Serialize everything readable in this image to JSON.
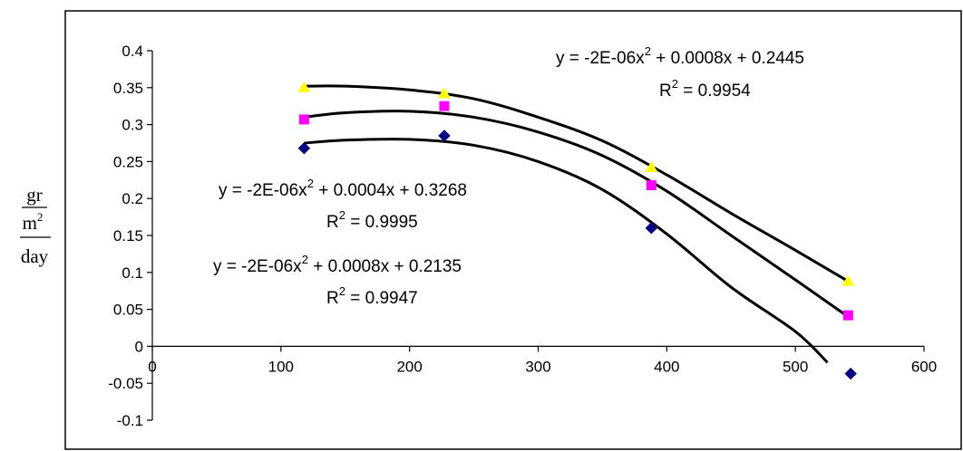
{
  "chart_data": {
    "type": "scatter",
    "title": "",
    "xlabel": "",
    "ylabel": {
      "numerator": "gr",
      "denominator_base": "m",
      "denominator_exp": "2",
      "per": "day"
    },
    "xlim": [
      0,
      600
    ],
    "ylim": [
      -0.1,
      0.4
    ],
    "x_ticks": [
      0,
      100,
      200,
      300,
      400,
      500,
      600
    ],
    "y_ticks": [
      -0.1,
      -0.05,
      0,
      0.05,
      0.1,
      0.15,
      0.2,
      0.25,
      0.3,
      0.35,
      0.4
    ],
    "x_tick_labels": [
      "0",
      "100",
      "200",
      "300",
      "400",
      "500",
      "600"
    ],
    "y_tick_labels": [
      "-0.1",
      "-0.05",
      "0",
      "0.05",
      "0.1",
      "0.15",
      "0.2",
      "0.25",
      "0.3",
      "0.35",
      "0.4"
    ],
    "grid": false,
    "legend": "none",
    "series": [
      {
        "marker": "diamond",
        "color": "#000080",
        "x": [
          118,
          227,
          388,
          543
        ],
        "y": [
          0.268,
          0.285,
          0.16,
          -0.037
        ]
      },
      {
        "marker": "square",
        "color": "#FF00FF",
        "x": [
          118,
          227,
          388,
          541
        ],
        "y": [
          0.307,
          0.325,
          0.218,
          0.042
        ]
      },
      {
        "marker": "triangle",
        "color": "#FFFF00",
        "x": [
          118,
          227,
          388,
          541
        ],
        "y": [
          0.35,
          0.342,
          0.242,
          0.088
        ]
      }
    ],
    "trendlines": [
      {
        "equation_text": "y = -2E-06x",
        "equation_exp": "2",
        "equation_rest": " + 0.0008x + 0.2135",
        "r2_label": "R",
        "r2_exp": "2",
        "r2_value": " = 0.9947",
        "points": [
          [
            118,
            0.275
          ],
          [
            150,
            0.279
          ],
          [
            200,
            0.28
          ],
          [
            250,
            0.272
          ],
          [
            300,
            0.25
          ],
          [
            350,
            0.212
          ],
          [
            400,
            0.152
          ],
          [
            450,
            0.08
          ],
          [
            500,
            0.02
          ],
          [
            525,
            -0.022
          ]
        ]
      },
      {
        "equation_text": "y = -2E-06x",
        "equation_exp": "2",
        "equation_rest": " + 0.0004x + 0.3268",
        "r2_label": "R",
        "r2_exp": "2",
        "r2_value": " = 0.9995",
        "points": [
          [
            118,
            0.31
          ],
          [
            150,
            0.316
          ],
          [
            200,
            0.318
          ],
          [
            250,
            0.31
          ],
          [
            300,
            0.29
          ],
          [
            350,
            0.258
          ],
          [
            400,
            0.21
          ],
          [
            450,
            0.15
          ],
          [
            500,
            0.09
          ],
          [
            541,
            0.04
          ]
        ]
      },
      {
        "equation_text": "y = -2E-06x",
        "equation_exp": "2",
        "equation_rest": " + 0.0008x + 0.2445",
        "r2_label": "R",
        "r2_exp": "2",
        "r2_value": " = 0.9954",
        "points": [
          [
            118,
            0.352
          ],
          [
            150,
            0.352
          ],
          [
            200,
            0.347
          ],
          [
            250,
            0.335
          ],
          [
            300,
            0.31
          ],
          [
            350,
            0.278
          ],
          [
            400,
            0.232
          ],
          [
            450,
            0.18
          ],
          [
            500,
            0.13
          ],
          [
            541,
            0.088
          ]
        ]
      }
    ]
  }
}
